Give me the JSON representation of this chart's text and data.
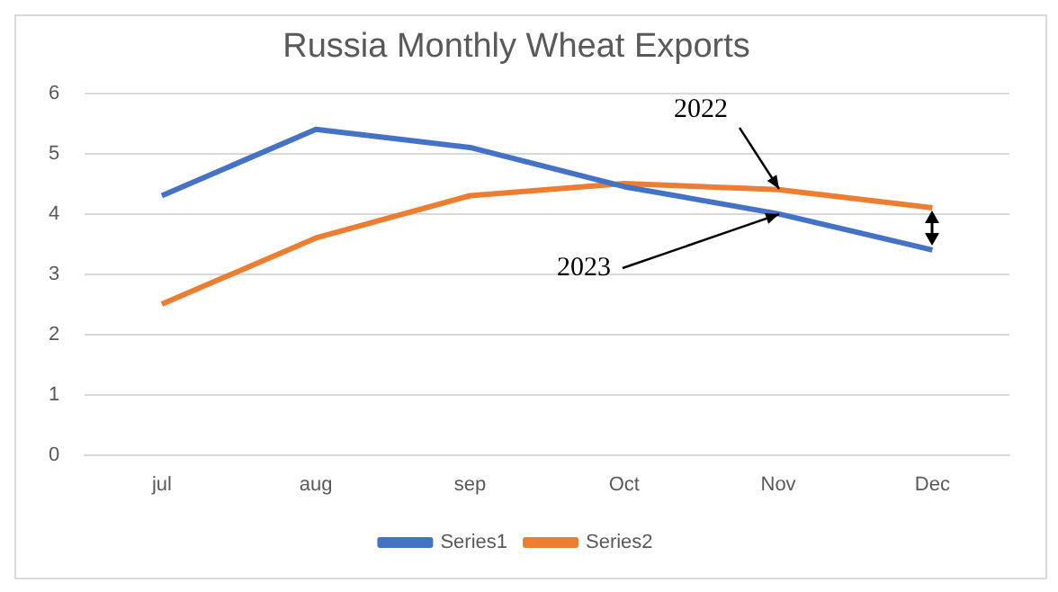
{
  "chart_data": {
    "type": "line",
    "title": "Russia Monthly Wheat Exports",
    "categories": [
      "jul",
      "aug",
      "sep",
      "Oct",
      "Nov",
      "Dec"
    ],
    "series": [
      {
        "name": "Series1",
        "color": "#4472c4",
        "values": [
          4.3,
          5.4,
          5.1,
          4.45,
          4.0,
          3.4
        ]
      },
      {
        "name": "Series2",
        "color": "#ed7d31",
        "values": [
          2.5,
          3.6,
          4.3,
          4.5,
          4.4,
          4.1
        ]
      }
    ],
    "ylim": [
      0,
      6
    ],
    "yticks": [
      0,
      1,
      2,
      3,
      4,
      5,
      6
    ],
    "grid": "y",
    "legend": "bottom",
    "marker": "none",
    "line_style": "solid",
    "annotations": [
      {
        "text": "2022",
        "x": "Nov",
        "y": 4.4
      },
      {
        "text": "2023",
        "x": "Nov",
        "y": 4.0
      }
    ]
  }
}
